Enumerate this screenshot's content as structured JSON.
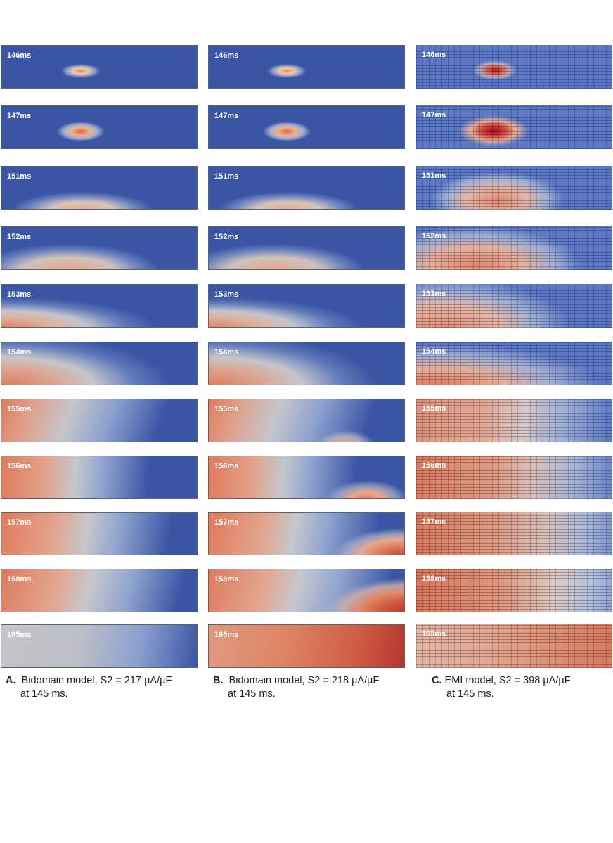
{
  "colors": {
    "blue": "#3a55a4",
    "red": "#b5362f",
    "orange": "#e07a5a",
    "gray": "#c0c4cc"
  },
  "columns": [
    {
      "id": "a",
      "caption": {
        "letter": "A.",
        "text": "Bidomain model, S2 = 217 µA/µF",
        "line2": "at 145 ms."
      },
      "frames": [
        {
          "time": "146ms"
        },
        {
          "time": "147ms"
        },
        {
          "time": "151ms"
        },
        {
          "time": "152ms"
        },
        {
          "time": "153ms"
        },
        {
          "time": "154ms"
        },
        {
          "time": "155ms"
        },
        {
          "time": "156ms"
        },
        {
          "time": "157ms"
        },
        {
          "time": "158ms"
        },
        {
          "time": "165ms"
        }
      ]
    },
    {
      "id": "b",
      "caption": {
        "letter": "B.",
        "text": "Bidomain model, S2 = 218 µA/µF",
        "line2": "at 145 ms."
      },
      "frames": [
        {
          "time": "146ms"
        },
        {
          "time": "147ms"
        },
        {
          "time": "151ms"
        },
        {
          "time": "152ms"
        },
        {
          "time": "153ms"
        },
        {
          "time": "154ms"
        },
        {
          "time": "155ms"
        },
        {
          "time": "156ms"
        },
        {
          "time": "157ms"
        },
        {
          "time": "158ms"
        },
        {
          "time": "165ms"
        }
      ]
    },
    {
      "id": "c",
      "caption": {
        "letter": "C.",
        "text": "EMI model, S2 = 398 µA/µF",
        "line2": "at 145 ms."
      },
      "frames": [
        {
          "time": "146ms"
        },
        {
          "time": "147ms"
        },
        {
          "time": "151ms"
        },
        {
          "time": "152ms"
        },
        {
          "time": "153ms"
        },
        {
          "time": "154ms"
        },
        {
          "time": "155ms"
        },
        {
          "time": "156ms"
        },
        {
          "time": "157ms"
        },
        {
          "time": "158ms"
        },
        {
          "time": "165ms"
        }
      ]
    }
  ]
}
